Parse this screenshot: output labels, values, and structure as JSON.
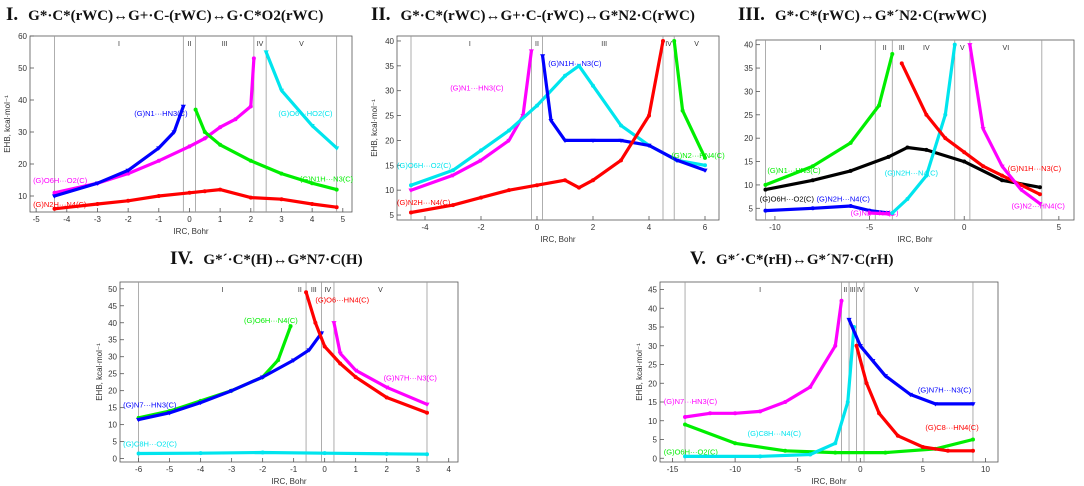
{
  "chart_data": [
    {
      "type": "line",
      "roman": "I.",
      "title": "G*·C*(rWC)↔G+·C-(rWC)↔G·C*O2(rWC)",
      "xlabel": "IRC, Bohr",
      "ylabel": "EHB, kcal·mol⁻¹",
      "xlim": [
        -5.2,
        5.3
      ],
      "ylim": [
        5,
        60
      ],
      "xticks": [
        -5,
        -4,
        -3,
        -2,
        -1,
        0,
        1,
        2,
        3,
        4,
        5
      ],
      "yticks": [
        10,
        20,
        30,
        40,
        50,
        60
      ],
      "region_lines": [
        -4.4,
        -0.2,
        0.2,
        2.1,
        2.5,
        4.8
      ],
      "regions": [
        {
          "x": -2.3,
          "label": "I"
        },
        {
          "x": 0.0,
          "label": "II"
        },
        {
          "x": 1.15,
          "label": "III"
        },
        {
          "x": 2.3,
          "label": "IV"
        },
        {
          "x": 3.65,
          "label": "V"
        }
      ],
      "series": [
        {
          "name": "(G)O6H···O2(C)",
          "color": "#ff00ff",
          "marker": "dot",
          "x": [
            -4.4,
            -3,
            -2,
            -1,
            0,
            0.5,
            1,
            1.5,
            2,
            2.1
          ],
          "y": [
            11,
            14,
            17,
            21,
            25.5,
            28,
            31.5,
            34,
            38,
            53
          ],
          "label": {
            "x": -5.1,
            "y": 14
          }
        },
        {
          "name": "(G)N1···HN3(C)",
          "color": "#0000ff",
          "marker": "tri",
          "x": [
            -4.4,
            -3,
            -2,
            -1,
            -0.5,
            -0.2
          ],
          "y": [
            10,
            14,
            18,
            25,
            30,
            38
          ],
          "label": {
            "x": -1.8,
            "y": 35
          }
        },
        {
          "name": "(G)N2H···N4(C)",
          "color": "#ff0000",
          "marker": "dot",
          "x": [
            -4.4,
            -3,
            -2,
            -1,
            0,
            0.5,
            1,
            2,
            3,
            4,
            4.8
          ],
          "y": [
            6,
            7.5,
            8.5,
            10,
            11,
            11.5,
            12,
            9.5,
            9,
            7.5,
            6.5
          ],
          "label": {
            "x": -5.1,
            "y": 6.5
          }
        },
        {
          "name": "(G)N1H···N3(C)",
          "color": "#00ee00",
          "marker": "dot",
          "x": [
            0.2,
            0.5,
            1,
            2,
            3,
            4,
            4.8
          ],
          "y": [
            37,
            30,
            26,
            21,
            17,
            14,
            12
          ],
          "label": {
            "x": 3.6,
            "y": 14.5
          }
        },
        {
          "name": "(G)O6···HO2(C)",
          "color": "#00e5ee",
          "marker": "tri",
          "x": [
            2.5,
            3,
            4,
            4.8
          ],
          "y": [
            55,
            43,
            32,
            25
          ],
          "label": {
            "x": 2.9,
            "y": 35
          }
        }
      ]
    },
    {
      "type": "line",
      "roman": "II.",
      "title": "G*·C*(rWC)↔G+·C-(rWC)↔G*N2·C(rWC)",
      "xlabel": "IRC, Bohr",
      "ylabel": "EHB, kcal·mol⁻¹",
      "xlim": [
        -5,
        6.5
      ],
      "ylim": [
        4,
        41
      ],
      "xticks": [
        -4,
        -2,
        0,
        2,
        4,
        6
      ],
      "yticks": [
        5,
        10,
        15,
        20,
        25,
        30,
        35,
        40
      ],
      "region_lines": [
        -4.5,
        -0.2,
        0.2,
        4.5,
        4.9
      ],
      "regions": [
        {
          "x": -2.4,
          "label": "I"
        },
        {
          "x": 0.0,
          "label": "II"
        },
        {
          "x": 2.4,
          "label": "III"
        },
        {
          "x": 4.7,
          "label": "IV"
        },
        {
          "x": 5.7,
          "label": "V"
        }
      ],
      "series": [
        {
          "name": "(G)N1···HN3(C)",
          "color": "#ff00ff",
          "marker": "tri",
          "x": [
            -4.5,
            -3,
            -2,
            -1,
            -0.5,
            -0.2
          ],
          "y": [
            10,
            13,
            16,
            20,
            25,
            38
          ],
          "label": {
            "x": -3.1,
            "y": 30
          }
        },
        {
          "name": "(G)O6H···O2(C)",
          "color": "#00e5ee",
          "marker": "dot",
          "x": [
            -4.5,
            -3,
            -2,
            -1,
            0,
            1,
            1.5,
            2,
            3,
            4,
            5,
            6
          ],
          "y": [
            11,
            14,
            18,
            22,
            27,
            33,
            35,
            31,
            23,
            19,
            16,
            15
          ],
          "label": {
            "x": -5,
            "y": 14.5
          }
        },
        {
          "name": "(G)N1H···N3(C)",
          "color": "#0000ff",
          "marker": "tri",
          "x": [
            0.2,
            0.5,
            1,
            2,
            3,
            4,
            5,
            6
          ],
          "y": [
            37,
            24,
            20,
            20,
            20,
            19,
            16,
            14
          ],
          "label": {
            "x": 0.4,
            "y": 35
          }
        },
        {
          "name": "(G)N2H···N4(C)",
          "color": "#ff0000",
          "marker": "dot",
          "x": [
            -4.5,
            -3,
            -2,
            -1,
            0,
            1,
            1.5,
            2,
            3,
            4,
            4.5
          ],
          "y": [
            5.5,
            7,
            8.5,
            10,
            11,
            12,
            10.5,
            12,
            16,
            25,
            40
          ],
          "label": {
            "x": -5,
            "y": 7
          }
        },
        {
          "name": "(G)N2···HN4(C)",
          "color": "#00ee00",
          "marker": "dot",
          "x": [
            4.9,
            5.2,
            6
          ],
          "y": [
            40,
            26,
            16.5
          ],
          "label": {
            "x": 4.8,
            "y": 16.5
          }
        }
      ]
    },
    {
      "type": "line",
      "roman": "III.",
      "title": "G*·C*(rWC)↔G*´N2·C(rwWC)",
      "xlabel": "IRC, Bohr",
      "ylabel": "",
      "xlim": [
        -11,
        5.8
      ],
      "ylim": [
        2.5,
        41
      ],
      "xticks": [
        -10,
        -5,
        0,
        5
      ],
      "yticks": [
        5,
        10,
        15,
        20,
        25,
        30,
        35,
        40
      ],
      "region_lines": [
        -10.5,
        -4.7,
        -3.8,
        -0.5,
        0.3,
        4.1
      ],
      "regions": [
        {
          "x": -7.6,
          "label": "I"
        },
        {
          "x": -4.2,
          "label": "II"
        },
        {
          "x": -3.3,
          "label": "III"
        },
        {
          "x": -2.0,
          "label": "IV"
        },
        {
          "x": -0.1,
          "label": "V"
        },
        {
          "x": 2.2,
          "label": "VI"
        }
      ],
      "series": [
        {
          "name": "(G)N1···HN3(C)",
          "color": "#00ee00",
          "marker": "dot",
          "x": [
            -10.5,
            -8,
            -6,
            -4.5,
            -3.8
          ],
          "y": [
            10,
            14,
            19,
            27,
            38
          ],
          "label": {
            "x": -10.4,
            "y": 12.5
          }
        },
        {
          "name": "(G)O6H···O2(C)",
          "color": "#000000",
          "marker": "dot",
          "x": [
            -10.5,
            -8,
            -6,
            -4,
            -3,
            -2,
            0,
            2,
            4
          ],
          "y": [
            9,
            11,
            13,
            16,
            18,
            17.5,
            15,
            11,
            9.5
          ],
          "label": {
            "x": -10.8,
            "y": 6.5
          }
        },
        {
          "name": "(G)N2H···N4(C)",
          "color": "#0000ff",
          "marker": "dot",
          "x": [
            -10.5,
            -8,
            -6,
            -5,
            -4
          ],
          "y": [
            4.5,
            5,
            5.5,
            4.5,
            4
          ],
          "label": {
            "x": -7.8,
            "y": 6.5
          }
        },
        {
          "name": "(G)N2···N4(C)",
          "color": "#ff00ff",
          "marker": "dot",
          "x": [
            -5,
            -4,
            -3.8
          ],
          "y": [
            4,
            3.8,
            3.8
          ],
          "label": {
            "x": -6,
            "y": 3.5
          }
        },
        {
          "name": "(G)N2H···N4(C)",
          "color": "#00e5ee",
          "marker": "dot",
          "x": [
            -3.8,
            -3,
            -2,
            -1,
            -0.5
          ],
          "y": [
            4,
            7,
            12,
            25,
            40
          ],
          "label": {
            "x": -4.2,
            "y": 12
          }
        },
        {
          "name": "(G)N1H···N3(C)",
          "color": "#ff0000",
          "marker": "dot",
          "x": [
            -3.3,
            -2,
            -1,
            0,
            1,
            2,
            3,
            4
          ],
          "y": [
            36,
            25,
            20,
            17,
            14,
            12,
            10,
            8
          ],
          "label": {
            "x": 2.3,
            "y": 13
          }
        },
        {
          "name": "(G)N2···HN4(C)",
          "color": "#ff00ff",
          "marker": "tri",
          "x": [
            0.3,
            1,
            2,
            3,
            4
          ],
          "y": [
            40,
            22,
            14,
            9,
            6
          ],
          "label": {
            "x": 2.5,
            "y": 5
          }
        }
      ]
    },
    {
      "type": "line",
      "roman": "IV.",
      "title": "G*´·C*(H)↔G*N7·C(H)",
      "xlabel": "IRC, Bohr",
      "ylabel": "EHB, kcal·mol⁻¹",
      "xlim": [
        -6.6,
        4.3
      ],
      "ylim": [
        -1,
        52
      ],
      "xticks": [
        -6,
        -5,
        -4,
        -3,
        -2,
        -1,
        0,
        1,
        2,
        3,
        4
      ],
      "yticks": [
        0,
        5,
        10,
        15,
        20,
        25,
        30,
        35,
        40,
        45,
        50
      ],
      "region_lines": [
        -6.0,
        -0.6,
        -0.1,
        0.3,
        3.3
      ],
      "regions": [
        {
          "x": -3.3,
          "label": "I"
        },
        {
          "x": -0.8,
          "label": "II"
        },
        {
          "x": -0.35,
          "label": "III"
        },
        {
          "x": 0.1,
          "label": "IV"
        },
        {
          "x": 1.8,
          "label": "V"
        }
      ],
      "series": [
        {
          "name": "(G)O6H···N4(C)",
          "color": "#00ee00",
          "marker": "dot",
          "x": [
            -6,
            -5,
            -4,
            -3,
            -2,
            -1.5,
            -1.1
          ],
          "y": [
            12,
            14,
            17,
            20,
            24,
            29,
            39
          ],
          "label": {
            "x": -2.6,
            "y": 40
          }
        },
        {
          "name": "(G)N7···HN3(C)",
          "color": "#0000ff",
          "marker": "tri",
          "x": [
            -6,
            -5,
            -4,
            -3,
            -2,
            -1,
            -0.5,
            -0.1
          ],
          "y": [
            11.5,
            13.5,
            16.5,
            20,
            24,
            29,
            32,
            37
          ],
          "label": {
            "x": -6.5,
            "y": 15
          }
        },
        {
          "name": "(G)O6···HN4(C)",
          "color": "#ff0000",
          "marker": "dot",
          "x": [
            -0.6,
            -0.3,
            0,
            0.5,
            1,
            2,
            3.3
          ],
          "y": [
            49,
            40,
            33,
            28,
            24,
            18,
            13.5
          ],
          "label": {
            "x": -0.3,
            "y": 46
          }
        },
        {
          "name": "(G)N7H···N3(C)",
          "color": "#ff00ff",
          "marker": "tri",
          "x": [
            0.3,
            0.5,
            1,
            2,
            3.3
          ],
          "y": [
            40,
            31,
            26,
            21,
            16
          ],
          "label": {
            "x": 1.9,
            "y": 23
          }
        },
        {
          "name": "(G)C8H···O2(C)",
          "color": "#00e5ee",
          "marker": "dot",
          "x": [
            -6,
            -4,
            -2,
            0,
            2,
            3.3
          ],
          "y": [
            1.5,
            1.6,
            1.8,
            1.6,
            1.4,
            1.3
          ],
          "label": {
            "x": -6.5,
            "y": 3.5
          }
        }
      ]
    },
    {
      "type": "line",
      "roman": "V.",
      "title": "G*´·C*(rH)↔G*´N7·C(rH)",
      "xlabel": "IRC, Bohr",
      "ylabel": "EHB, kcal·mol⁻¹",
      "xlim": [
        -16,
        11
      ],
      "ylim": [
        -1,
        47
      ],
      "xticks": [
        -15,
        -10,
        -5,
        0,
        5,
        10
      ],
      "yticks": [
        0,
        5,
        10,
        15,
        20,
        25,
        30,
        35,
        40,
        45
      ],
      "region_lines": [
        -14,
        -1.5,
        -0.9,
        -0.3,
        0.3,
        9
      ],
      "regions": [
        {
          "x": -8,
          "label": "I"
        },
        {
          "x": -1.2,
          "label": "II"
        },
        {
          "x": -0.6,
          "label": "III"
        },
        {
          "x": 0.0,
          "label": "IV"
        },
        {
          "x": 4.5,
          "label": "V"
        }
      ],
      "series": [
        {
          "name": "(G)N7···HN3(C)",
          "color": "#ff00ff",
          "marker": "dot",
          "x": [
            -14,
            -12,
            -10,
            -8,
            -6,
            -4,
            -2,
            -1.5
          ],
          "y": [
            11,
            12,
            12,
            12.5,
            15,
            19,
            30,
            42
          ],
          "label": {
            "x": -15.7,
            "y": 14.5
          }
        },
        {
          "name": "(G)O6H···O2(C)",
          "color": "#00ee00",
          "marker": "dot",
          "x": [
            -14,
            -10,
            -6,
            -2,
            2,
            6,
            9
          ],
          "y": [
            9,
            4,
            2,
            1.5,
            1.5,
            2.5,
            5
          ],
          "label": {
            "x": -15.7,
            "y": 1
          }
        },
        {
          "name": "(G)C8H···N4(C)",
          "color": "#00e5ee",
          "marker": "dot",
          "x": [
            -14,
            -8,
            -4,
            -2,
            -1,
            -0.5
          ],
          "y": [
            0.5,
            0.5,
            1,
            4,
            15,
            35
          ],
          "label": {
            "x": -9,
            "y": 6
          }
        },
        {
          "name": "(G)N7H···N3(C)",
          "color": "#0000ff",
          "marker": "tri",
          "x": [
            -0.9,
            0,
            1,
            2,
            4,
            6,
            9
          ],
          "y": [
            37,
            30,
            26,
            22,
            17,
            14.5,
            14.5
          ],
          "label": {
            "x": 4.6,
            "y": 17.5
          }
        },
        {
          "name": "(G)C8···HN4(C)",
          "color": "#ff0000",
          "marker": "dot",
          "x": [
            -0.3,
            0.5,
            1.5,
            3,
            5,
            7,
            9
          ],
          "y": [
            30,
            20,
            12,
            6,
            3,
            2,
            2
          ],
          "label": {
            "x": 5.2,
            "y": 7.5
          }
        }
      ]
    }
  ]
}
